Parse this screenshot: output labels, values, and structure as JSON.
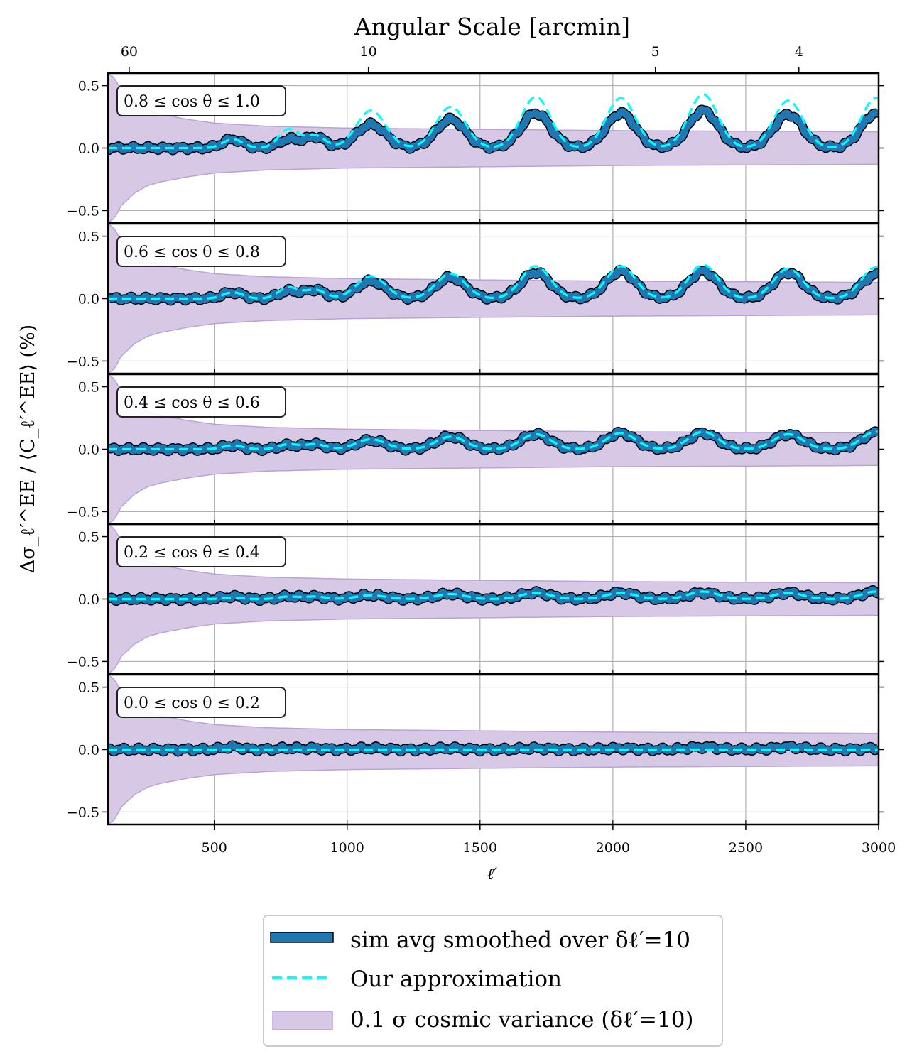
{
  "chart_data": {
    "type": "line",
    "top_axis": {
      "title": "Angular Scale [arcmin]",
      "ticks": [
        {
          "label": "60",
          "ell": 180
        },
        {
          "label": "10",
          "ell": 1080
        },
        {
          "label": "5",
          "ell": 2160
        },
        {
          "label": "4",
          "ell": 2700
        }
      ]
    },
    "xlabel": "ℓ′",
    "ylabel": "Δσ_ℓ′^EE / ⟨C_ℓ′^EE⟩ (%)",
    "xlim": [
      100,
      3000
    ],
    "ylim": [
      -0.6,
      0.6
    ],
    "xticks": [
      500,
      1000,
      1500,
      2000,
      2500,
      3000
    ],
    "yticks": [
      0.5,
      0.0,
      -0.5
    ],
    "ytick_labels": [
      "0.5",
      "0.0",
      "−0.5"
    ],
    "grid": true,
    "cosmic_variance": {
      "ell": [
        100,
        125,
        150,
        200,
        250,
        300,
        400,
        500,
        700,
        1000,
        1500,
        2000,
        2500,
        3000
      ],
      "half_width": [
        0.6,
        0.56,
        0.46,
        0.36,
        0.3,
        0.27,
        0.23,
        0.2,
        0.175,
        0.16,
        0.15,
        0.14,
        0.135,
        0.13
      ]
    },
    "panels": [
      {
        "label": "0.8 ≤ cos θ ≤ 1.0",
        "peak_ell": [
          570,
          780,
          880,
          1090,
          1390,
          1710,
          2030,
          2340,
          2660,
          2990
        ],
        "sim_peak": [
          0.07,
          0.07,
          0.09,
          0.19,
          0.23,
          0.28,
          0.28,
          0.3,
          0.27,
          0.28
        ],
        "approx_peak": [
          0.07,
          0.15,
          0.1,
          0.3,
          0.33,
          0.41,
          0.4,
          0.43,
          0.38,
          0.4
        ]
      },
      {
        "label": "0.6 ≤ cos θ ≤ 0.8",
        "peak_ell": [
          570,
          780,
          880,
          1090,
          1390,
          1710,
          2030,
          2340,
          2660,
          2990
        ],
        "sim_peak": [
          0.05,
          0.06,
          0.07,
          0.14,
          0.17,
          0.21,
          0.22,
          0.22,
          0.21,
          0.19
        ],
        "approx_peak": [
          0.05,
          0.09,
          0.07,
          0.18,
          0.2,
          0.26,
          0.26,
          0.27,
          0.24,
          0.25
        ]
      },
      {
        "label": "0.4 ≤ cos θ ≤ 0.6",
        "peak_ell": [
          570,
          780,
          880,
          1090,
          1390,
          1710,
          2030,
          2340,
          2660,
          2990
        ],
        "sim_peak": [
          0.03,
          0.03,
          0.04,
          0.07,
          0.1,
          0.12,
          0.13,
          0.13,
          0.12,
          0.13
        ],
        "approx_peak": [
          0.03,
          0.04,
          0.04,
          0.08,
          0.1,
          0.12,
          0.13,
          0.14,
          0.12,
          0.14
        ]
      },
      {
        "label": "0.2 ≤ cos θ ≤ 0.4",
        "peak_ell": [
          570,
          780,
          880,
          1090,
          1390,
          1710,
          2030,
          2340,
          2660,
          2990
        ],
        "sim_peak": [
          0.02,
          0.02,
          0.02,
          0.03,
          0.04,
          0.05,
          0.05,
          0.05,
          0.05,
          0.06
        ],
        "approx_peak": [
          0.01,
          0.02,
          0.02,
          0.03,
          0.04,
          0.05,
          0.05,
          0.06,
          0.05,
          0.06
        ]
      },
      {
        "label": "0.0 ≤ cos θ ≤ 0.2",
        "peak_ell": [
          570,
          780,
          880,
          1090,
          1390,
          1710,
          2030,
          2340,
          2660,
          2990
        ],
        "sim_peak": [
          0.02,
          0.01,
          0.01,
          0.01,
          0.01,
          0.01,
          0.01,
          0.02,
          0.02,
          0.01
        ],
        "approx_peak": [
          0.0,
          0.0,
          0.0,
          0.0,
          0.0,
          0.0,
          0.0,
          0.0,
          0.0,
          0.0
        ]
      }
    ],
    "series": [
      {
        "name": "sim avg smoothed over δℓ′=10",
        "color": "#1f77b4"
      },
      {
        "name": "Our approximation",
        "color": "#00ffff"
      },
      {
        "name": "0.1 σ cosmic variance (δℓ′=10)",
        "color": "#9370c8"
      }
    ]
  }
}
